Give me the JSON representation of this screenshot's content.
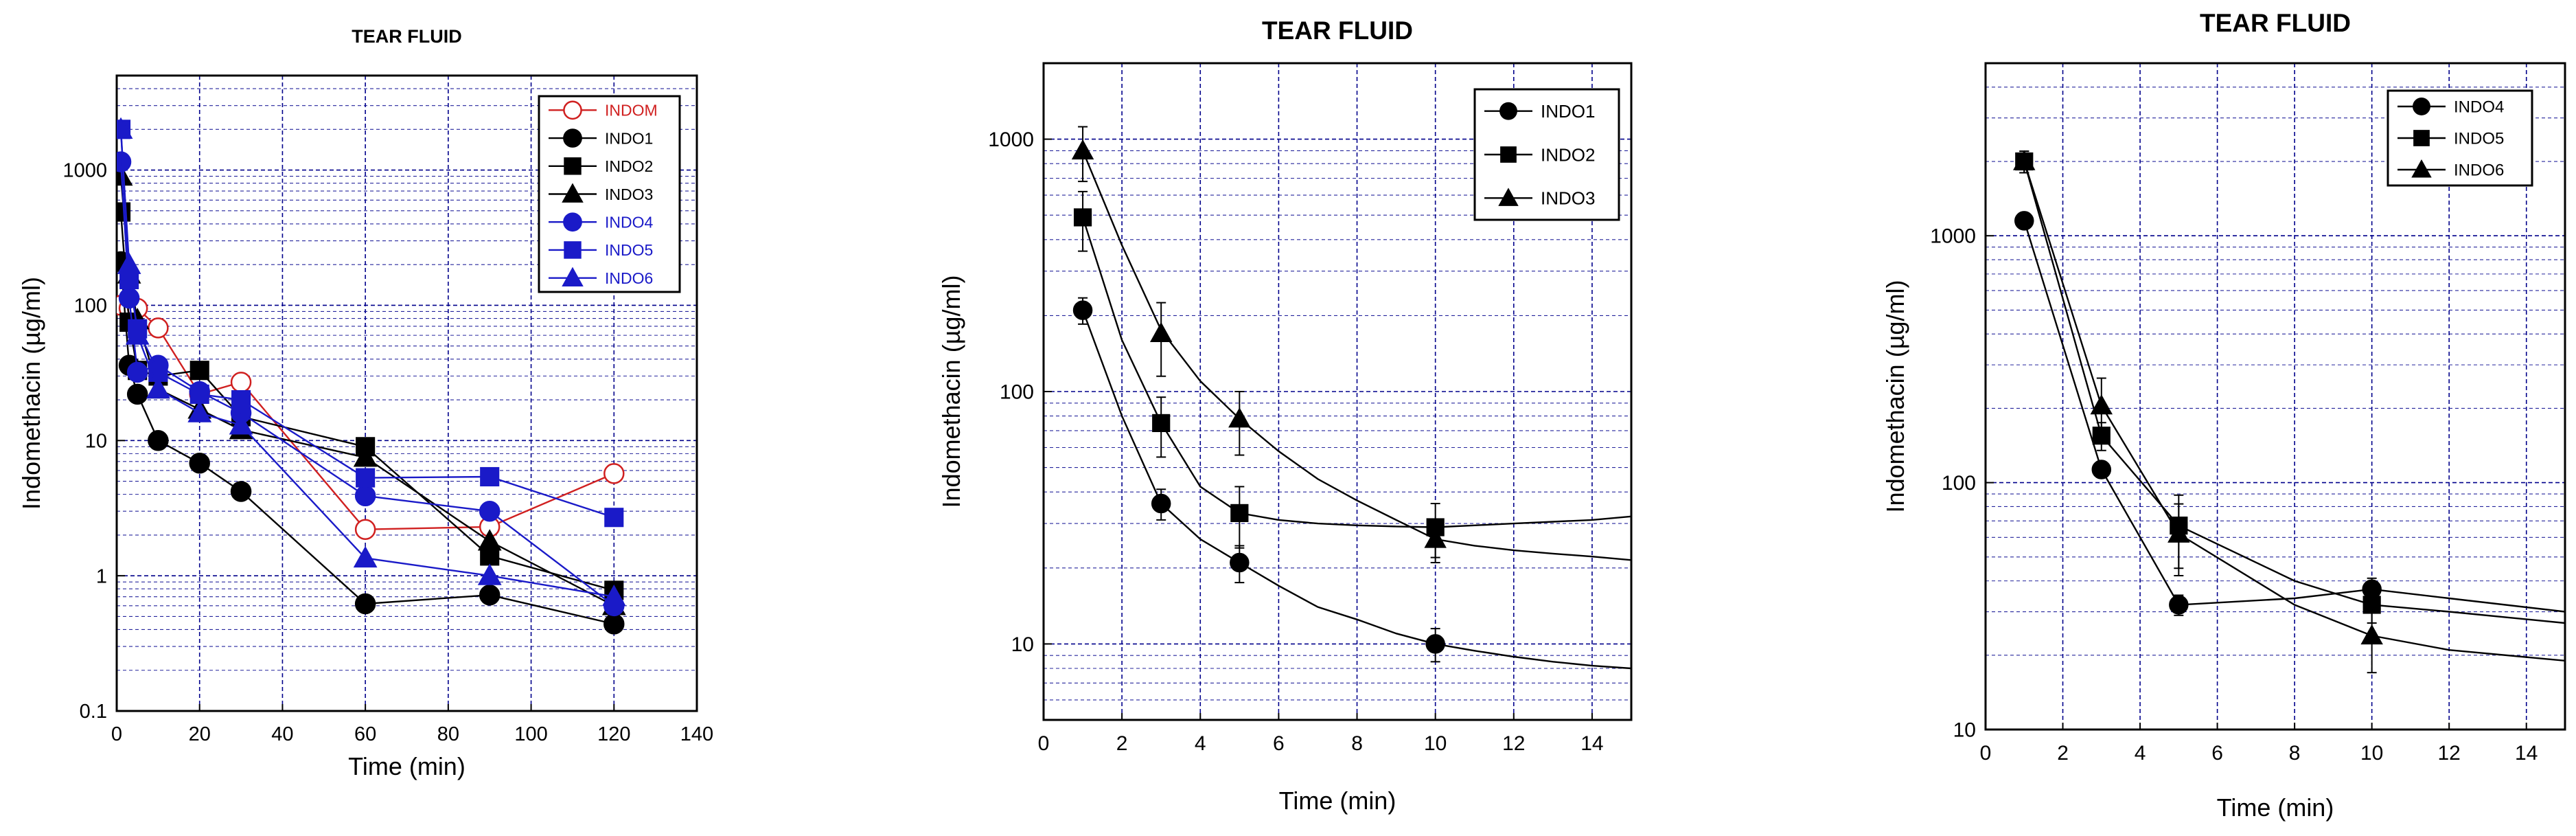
{
  "chart_data": [
    {
      "type": "line",
      "title": "TEAR FLUID",
      "xlabel": "Time (min)",
      "ylabel": "Indomethacin (µg/ml)",
      "yscale": "log",
      "xlim": [
        0,
        140
      ],
      "ylim": [
        0.1,
        5000
      ],
      "xticks": [
        "0",
        "20",
        "40",
        "60",
        "80",
        "100",
        "120",
        "140"
      ],
      "yticks": [
        "0.1",
        "1",
        "10",
        "100",
        "1000"
      ],
      "grid": true,
      "legend": "top-right",
      "series": [
        {
          "name": "INDOM",
          "color": "#d02020",
          "marker": "circle-open",
          "x": [
            1,
            3,
            5,
            10,
            20,
            30,
            60,
            90,
            120
          ],
          "y": [
            100,
            95,
            95,
            68,
            22,
            27,
            2.2,
            2.3,
            5.7
          ]
        },
        {
          "name": "INDO1",
          "color": "#000000",
          "marker": "circle",
          "x": [
            1,
            3,
            5,
            10,
            20,
            30,
            60,
            90,
            120
          ],
          "y": [
            210,
            36,
            22,
            10,
            6.8,
            4.2,
            0.62,
            0.72,
            0.44
          ]
        },
        {
          "name": "INDO2",
          "color": "#000000",
          "marker": "square",
          "x": [
            1,
            3,
            5,
            10,
            20,
            30,
            60,
            90,
            120
          ],
          "y": [
            490,
            75,
            33,
            30,
            33,
            15,
            9,
            1.4,
            0.78
          ]
        },
        {
          "name": "INDO3",
          "color": "#000000",
          "marker": "triangle",
          "x": [
            1,
            3,
            5,
            10,
            20,
            30,
            60,
            90,
            120
          ],
          "y": [
            900,
            170,
            78,
            24,
            17,
            12,
            7.5,
            1.8,
            0.6
          ]
        },
        {
          "name": "INDO4",
          "color": "#1a1ac8",
          "marker": "circle",
          "x": [
            1,
            3,
            5,
            10,
            20,
            30,
            60,
            90,
            120
          ],
          "y": [
            1150,
            113,
            32,
            36,
            23,
            16,
            3.9,
            3.0,
            0.6
          ]
        },
        {
          "name": "INDO5",
          "color": "#1a1ac8",
          "marker": "square",
          "x": [
            1,
            3,
            5,
            10,
            20,
            30,
            60,
            90,
            120
          ],
          "y": [
            2000,
            155,
            67,
            32,
            22,
            20,
            5.3,
            5.4,
            2.7
          ]
        },
        {
          "name": "INDO6",
          "color": "#1a1ac8",
          "marker": "triangle",
          "x": [
            1,
            3,
            5,
            10,
            20,
            30,
            60,
            90,
            120
          ],
          "y": [
            2000,
            200,
            60,
            24,
            16,
            13,
            1.35,
            1.0,
            0.7
          ]
        }
      ]
    },
    {
      "type": "line",
      "title": "TEAR FLUID",
      "xlabel": "Time (min)",
      "ylabel": "Indomethacin (µg/ml)",
      "yscale": "log",
      "xlim": [
        0,
        15
      ],
      "ylim": [
        5,
        2000
      ],
      "xticks": [
        "0",
        "2",
        "4",
        "6",
        "8",
        "10",
        "12",
        "14"
      ],
      "yticks": [
        "10",
        "100",
        "1000"
      ],
      "grid": true,
      "legend": "top-right",
      "series": [
        {
          "name": "INDO1",
          "color": "#000000",
          "marker": "circle",
          "x": [
            1,
            3,
            5,
            10
          ],
          "y": [
            210,
            36,
            21,
            10
          ],
          "err": [
            25,
            5,
            3.5,
            1.5
          ],
          "fit_x": [
            1,
            2,
            3,
            4,
            5,
            6,
            7,
            8,
            9,
            10,
            11,
            12,
            13,
            14,
            15
          ],
          "fit_y": [
            210,
            80,
            36,
            26,
            21,
            17,
            14,
            12.5,
            11,
            10,
            9.4,
            8.9,
            8.5,
            8.2,
            8
          ]
        },
        {
          "name": "INDO2",
          "color": "#000000",
          "marker": "square",
          "x": [
            1,
            3,
            5,
            10
          ],
          "y": [
            490,
            75,
            33,
            29
          ],
          "err": [
            130,
            20,
            9,
            7
          ],
          "fit_x": [
            1,
            2,
            3,
            4,
            5,
            6,
            7,
            8,
            9,
            10,
            11,
            12,
            13,
            14,
            15
          ],
          "fit_y": [
            490,
            160,
            75,
            42,
            33,
            31,
            30,
            29.5,
            29.2,
            29,
            29.5,
            30,
            30.5,
            31,
            32
          ]
        },
        {
          "name": "INDO3",
          "color": "#000000",
          "marker": "triangle",
          "x": [
            1,
            3,
            5,
            10
          ],
          "y": [
            900,
            170,
            78,
            26
          ],
          "err": [
            220,
            55,
            22,
            5
          ],
          "fit_x": [
            1,
            2,
            3,
            4,
            5,
            6,
            7,
            8,
            9,
            10,
            11,
            12,
            13,
            14,
            15
          ],
          "fit_y": [
            900,
            380,
            175,
            110,
            78,
            58,
            45,
            37,
            31,
            26,
            24.5,
            23.5,
            22.8,
            22.2,
            21.5
          ]
        }
      ]
    },
    {
      "type": "line",
      "title": "TEAR FLUID",
      "xlabel": "Time (min)",
      "ylabel": "Indomethacin (µg/ml)",
      "yscale": "log",
      "xlim": [
        0,
        15
      ],
      "ylim": [
        10,
        5000
      ],
      "xticks": [
        "0",
        "2",
        "4",
        "6",
        "8",
        "10",
        "12",
        "14"
      ],
      "yticks": [
        "10",
        "100",
        "1000"
      ],
      "grid": true,
      "legend": "top-right",
      "series": [
        {
          "name": "INDO4",
          "color": "#000000",
          "marker": "circle",
          "x": [
            1,
            3,
            5,
            10
          ],
          "y": [
            1150,
            113,
            32,
            37
          ],
          "err": [
            50,
            8,
            3,
            4
          ],
          "fit_x": [
            1,
            3,
            5,
            8,
            10,
            12,
            15
          ],
          "fit_y": [
            1150,
            113,
            32,
            34,
            37,
            34,
            30
          ]
        },
        {
          "name": "INDO5",
          "color": "#000000",
          "marker": "square",
          "x": [
            1,
            3,
            5,
            10
          ],
          "y": [
            2000,
            155,
            67,
            32
          ],
          "err": [
            200,
            20,
            22,
            5
          ],
          "fit_x": [
            1,
            3,
            5,
            8,
            10,
            12,
            15
          ],
          "fit_y": [
            2000,
            155,
            67,
            40,
            32,
            30,
            27
          ]
        },
        {
          "name": "INDO6",
          "color": "#000000",
          "marker": "triangle",
          "x": [
            1,
            3,
            5,
            10
          ],
          "y": [
            2000,
            205,
            62,
            24
          ],
          "err": [
            200,
            60,
            20,
            7
          ],
          "fit_x": [
            1,
            3,
            5,
            8,
            10,
            12,
            15
          ],
          "fit_y": [
            2000,
            205,
            62,
            32,
            24,
            21,
            19
          ]
        }
      ]
    }
  ]
}
